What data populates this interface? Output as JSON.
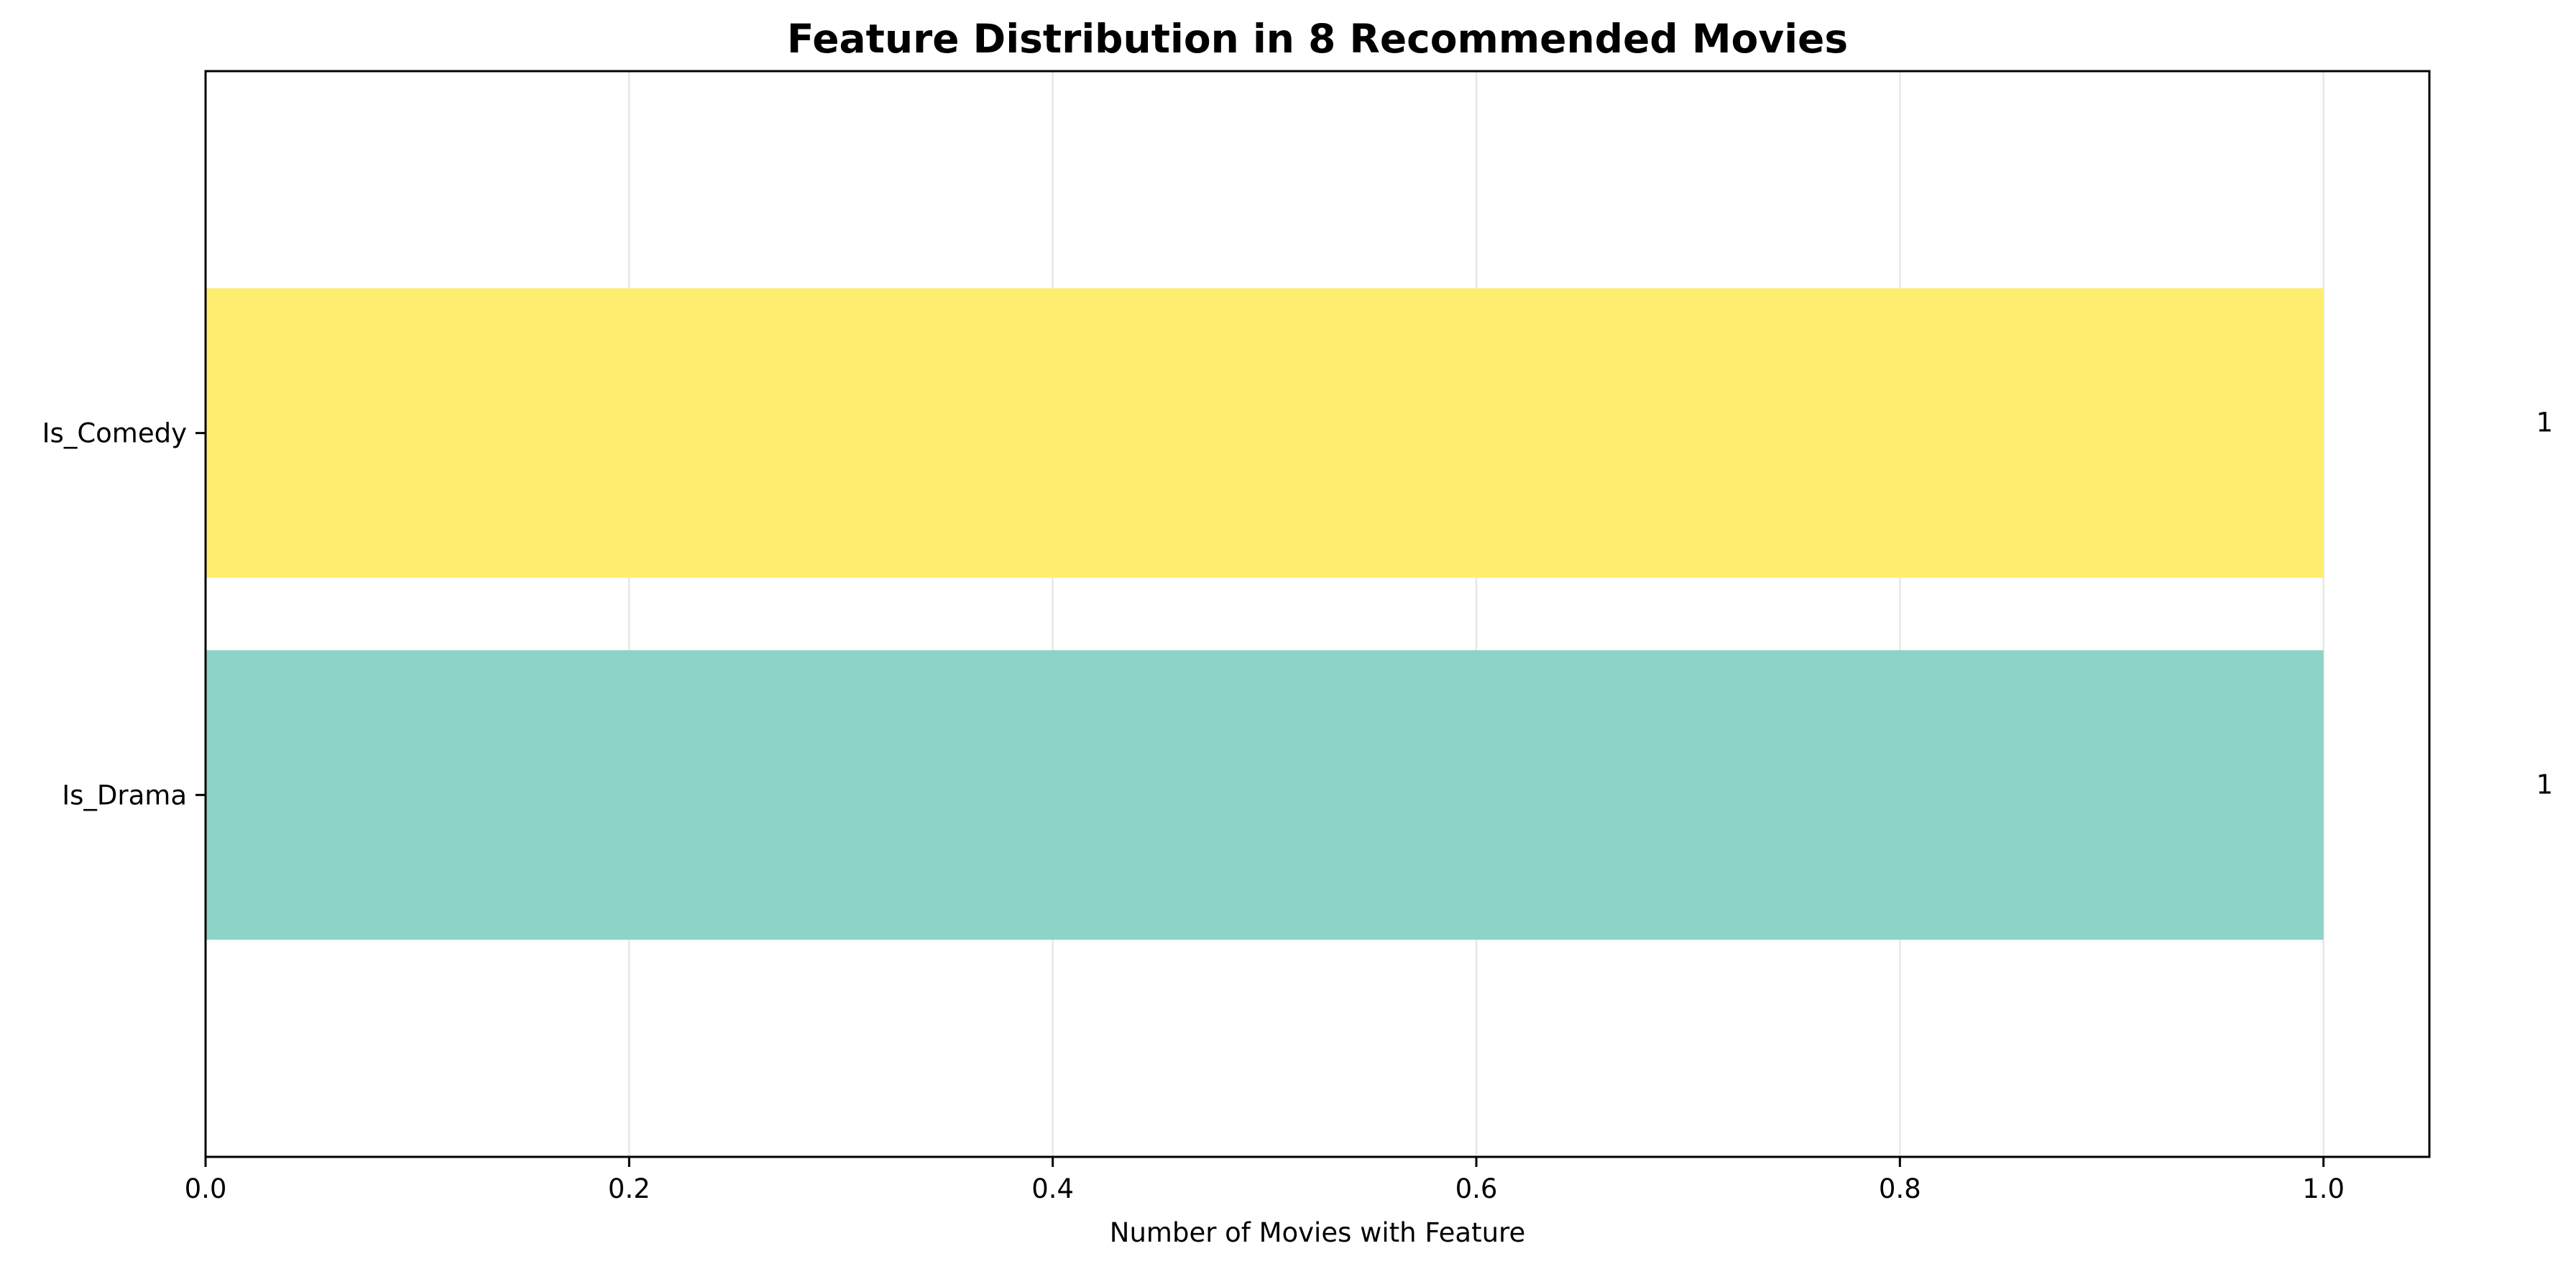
{
  "chart_data": {
    "type": "bar",
    "orientation": "horizontal",
    "title": "Feature Distribution in 8 Recommended Movies",
    "xlabel": "Number of Movies with Feature",
    "ylabel": "",
    "categories": [
      "Is_Drama",
      "Is_Comedy"
    ],
    "values": [
      1,
      1
    ],
    "value_labels": [
      "1",
      "1"
    ],
    "bar_colors": [
      "#8dd3c7",
      "#ffed6f"
    ],
    "xlim": [
      0,
      1.05
    ],
    "xticks": [
      0.0,
      0.2,
      0.4,
      0.6,
      0.8,
      1.0
    ],
    "xtick_labels": [
      "0.0",
      "0.2",
      "0.4",
      "0.6",
      "0.8",
      "1.0"
    ],
    "grid": "x",
    "legend": "none"
  }
}
